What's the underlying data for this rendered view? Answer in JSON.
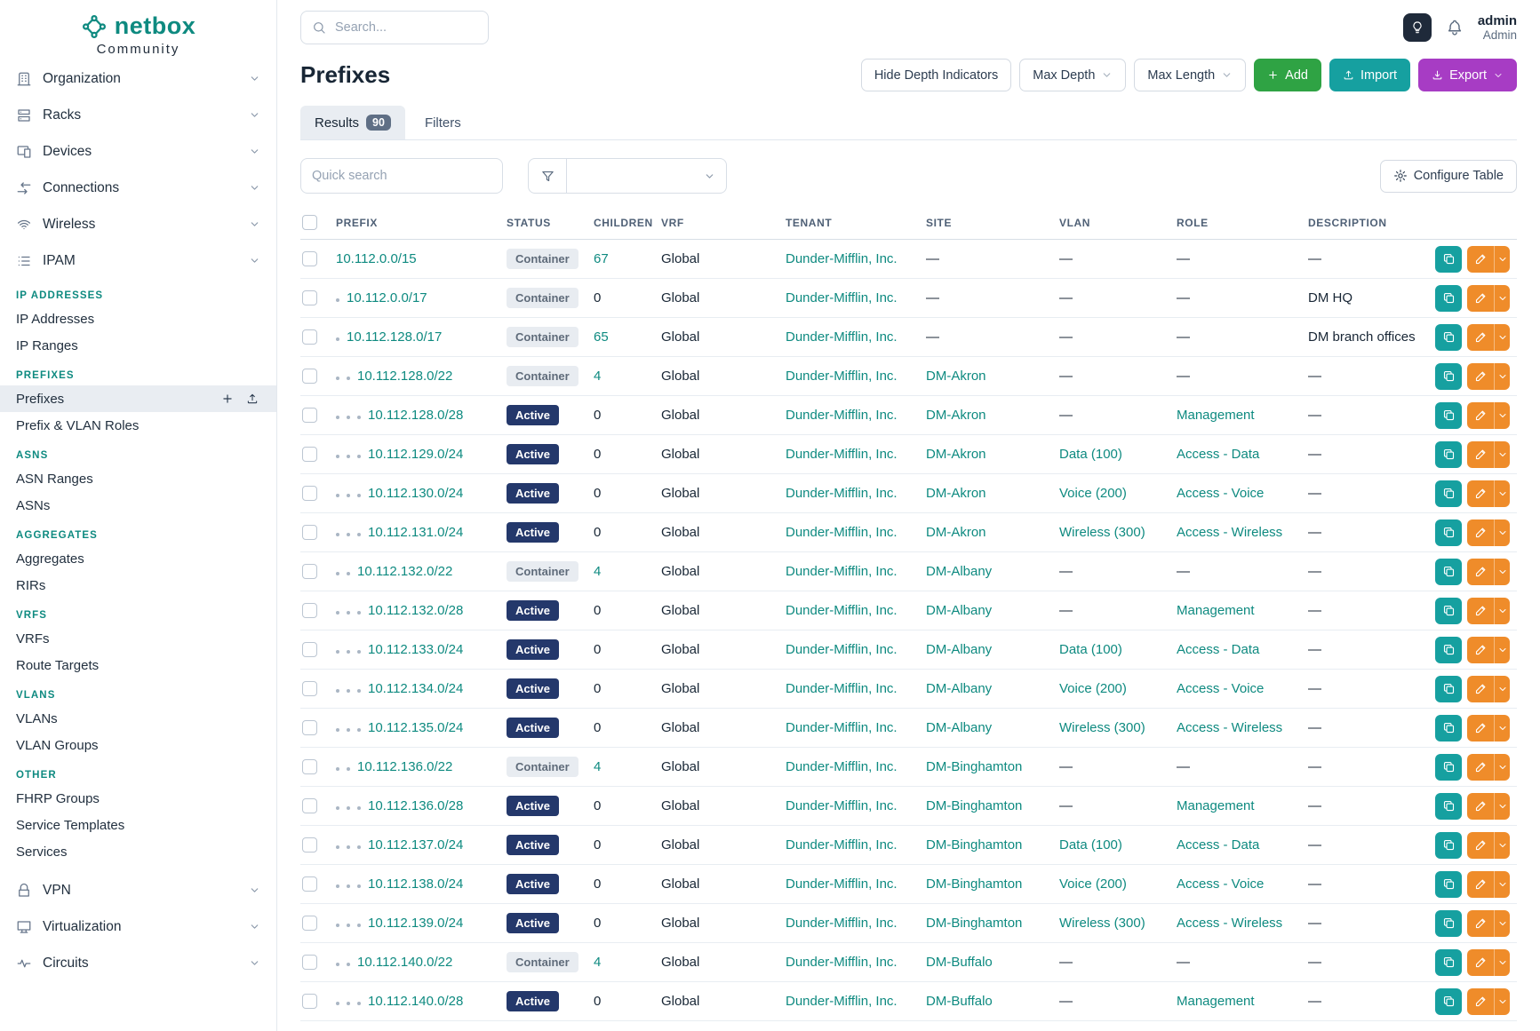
{
  "colors": {
    "teal": "#0e8a80",
    "green": "#2fa344",
    "importteal": "#16a0a0",
    "purple": "#a73cc4",
    "navy": "#24386b",
    "orange": "#ef8c2a",
    "badgegray": "#e8ecf1"
  },
  "brand": {
    "name": "netbox",
    "tagline": "Community"
  },
  "topbar": {
    "search_placeholder": "Search...",
    "user_name": "admin",
    "user_role": "Admin"
  },
  "sidebar": {
    "nav_top": [
      {
        "label": "Organization",
        "icon": "building-icon"
      },
      {
        "label": "Racks",
        "icon": "rack-icon"
      },
      {
        "label": "Devices",
        "icon": "devices-icon"
      },
      {
        "label": "Connections",
        "icon": "connections-icon"
      },
      {
        "label": "Wireless",
        "icon": "wifi-icon"
      },
      {
        "label": "IPAM",
        "icon": "ipam-icon"
      }
    ],
    "active_item": "Prefixes",
    "ipam_sections": [
      {
        "header": "IP ADDRESSES",
        "items": [
          "IP Addresses",
          "IP Ranges"
        ]
      },
      {
        "header": "PREFIXES",
        "items": [
          "Prefixes",
          "Prefix & VLAN Roles"
        ]
      },
      {
        "header": "ASNS",
        "items": [
          "ASN Ranges",
          "ASNs"
        ]
      },
      {
        "header": "AGGREGATES",
        "items": [
          "Aggregates",
          "RIRs"
        ]
      },
      {
        "header": "VRFS",
        "items": [
          "VRFs",
          "Route Targets"
        ]
      },
      {
        "header": "VLANS",
        "items": [
          "VLANs",
          "VLAN Groups"
        ]
      },
      {
        "header": "OTHER",
        "items": [
          "FHRP Groups",
          "Service Templates",
          "Services"
        ]
      }
    ],
    "nav_bottom": [
      {
        "label": "VPN",
        "icon": "vpn-icon"
      },
      {
        "label": "Virtualization",
        "icon": "virtualization-icon"
      },
      {
        "label": "Circuits",
        "icon": "circuits-icon"
      }
    ]
  },
  "page": {
    "title": "Prefixes",
    "buttons": {
      "hide_depth": "Hide Depth Indicators",
      "max_depth": "Max Depth",
      "max_length": "Max Length",
      "add": "Add",
      "import": "Import",
      "export": "Export"
    }
  },
  "tabs": {
    "results": "Results",
    "results_count": "90",
    "filters": "Filters"
  },
  "controls": {
    "quick_search_placeholder": "Quick search",
    "configure_table": "Configure Table"
  },
  "table": {
    "columns": [
      "PREFIX",
      "STATUS",
      "CHILDREN",
      "VRF",
      "TENANT",
      "SITE",
      "VLAN",
      "ROLE",
      "DESCRIPTION"
    ],
    "rows": [
      {
        "depth": 0,
        "prefix": "10.112.0.0/15",
        "status": "Container",
        "children": "67",
        "vrf": "Global",
        "tenant": "Dunder-Mifflin, Inc.",
        "site": "—",
        "vlan": "—",
        "role": "—",
        "description": "—"
      },
      {
        "depth": 1,
        "prefix": "10.112.0.0/17",
        "status": "Container",
        "children": "0",
        "vrf": "Global",
        "tenant": "Dunder-Mifflin, Inc.",
        "site": "—",
        "vlan": "—",
        "role": "—",
        "description": "DM HQ"
      },
      {
        "depth": 1,
        "prefix": "10.112.128.0/17",
        "status": "Container",
        "children": "65",
        "vrf": "Global",
        "tenant": "Dunder-Mifflin, Inc.",
        "site": "—",
        "vlan": "—",
        "role": "—",
        "description": "DM branch offices"
      },
      {
        "depth": 2,
        "prefix": "10.112.128.0/22",
        "status": "Container",
        "children": "4",
        "vrf": "Global",
        "tenant": "Dunder-Mifflin, Inc.",
        "site": "DM-Akron",
        "vlan": "—",
        "role": "—",
        "description": "—"
      },
      {
        "depth": 3,
        "prefix": "10.112.128.0/28",
        "status": "Active",
        "children": "0",
        "vrf": "Global",
        "tenant": "Dunder-Mifflin, Inc.",
        "site": "DM-Akron",
        "vlan": "—",
        "role": "Management",
        "description": "—"
      },
      {
        "depth": 3,
        "prefix": "10.112.129.0/24",
        "status": "Active",
        "children": "0",
        "vrf": "Global",
        "tenant": "Dunder-Mifflin, Inc.",
        "site": "DM-Akron",
        "vlan": "Data (100)",
        "role": "Access - Data",
        "description": "—"
      },
      {
        "depth": 3,
        "prefix": "10.112.130.0/24",
        "status": "Active",
        "children": "0",
        "vrf": "Global",
        "tenant": "Dunder-Mifflin, Inc.",
        "site": "DM-Akron",
        "vlan": "Voice (200)",
        "role": "Access - Voice",
        "description": "—"
      },
      {
        "depth": 3,
        "prefix": "10.112.131.0/24",
        "status": "Active",
        "children": "0",
        "vrf": "Global",
        "tenant": "Dunder-Mifflin, Inc.",
        "site": "DM-Akron",
        "vlan": "Wireless (300)",
        "role": "Access - Wireless",
        "description": "—"
      },
      {
        "depth": 2,
        "prefix": "10.112.132.0/22",
        "status": "Container",
        "children": "4",
        "vrf": "Global",
        "tenant": "Dunder-Mifflin, Inc.",
        "site": "DM-Albany",
        "vlan": "—",
        "role": "—",
        "description": "—"
      },
      {
        "depth": 3,
        "prefix": "10.112.132.0/28",
        "status": "Active",
        "children": "0",
        "vrf": "Global",
        "tenant": "Dunder-Mifflin, Inc.",
        "site": "DM-Albany",
        "vlan": "—",
        "role": "Management",
        "description": "—"
      },
      {
        "depth": 3,
        "prefix": "10.112.133.0/24",
        "status": "Active",
        "children": "0",
        "vrf": "Global",
        "tenant": "Dunder-Mifflin, Inc.",
        "site": "DM-Albany",
        "vlan": "Data (100)",
        "role": "Access - Data",
        "description": "—"
      },
      {
        "depth": 3,
        "prefix": "10.112.134.0/24",
        "status": "Active",
        "children": "0",
        "vrf": "Global",
        "tenant": "Dunder-Mifflin, Inc.",
        "site": "DM-Albany",
        "vlan": "Voice (200)",
        "role": "Access - Voice",
        "description": "—"
      },
      {
        "depth": 3,
        "prefix": "10.112.135.0/24",
        "status": "Active",
        "children": "0",
        "vrf": "Global",
        "tenant": "Dunder-Mifflin, Inc.",
        "site": "DM-Albany",
        "vlan": "Wireless (300)",
        "role": "Access - Wireless",
        "description": "—"
      },
      {
        "depth": 2,
        "prefix": "10.112.136.0/22",
        "status": "Container",
        "children": "4",
        "vrf": "Global",
        "tenant": "Dunder-Mifflin, Inc.",
        "site": "DM-Binghamton",
        "vlan": "—",
        "role": "—",
        "description": "—"
      },
      {
        "depth": 3,
        "prefix": "10.112.136.0/28",
        "status": "Active",
        "children": "0",
        "vrf": "Global",
        "tenant": "Dunder-Mifflin, Inc.",
        "site": "DM-Binghamton",
        "vlan": "—",
        "role": "Management",
        "description": "—"
      },
      {
        "depth": 3,
        "prefix": "10.112.137.0/24",
        "status": "Active",
        "children": "0",
        "vrf": "Global",
        "tenant": "Dunder-Mifflin, Inc.",
        "site": "DM-Binghamton",
        "vlan": "Data (100)",
        "role": "Access - Data",
        "description": "—"
      },
      {
        "depth": 3,
        "prefix": "10.112.138.0/24",
        "status": "Active",
        "children": "0",
        "vrf": "Global",
        "tenant": "Dunder-Mifflin, Inc.",
        "site": "DM-Binghamton",
        "vlan": "Voice (200)",
        "role": "Access - Voice",
        "description": "—"
      },
      {
        "depth": 3,
        "prefix": "10.112.139.0/24",
        "status": "Active",
        "children": "0",
        "vrf": "Global",
        "tenant": "Dunder-Mifflin, Inc.",
        "site": "DM-Binghamton",
        "vlan": "Wireless (300)",
        "role": "Access - Wireless",
        "description": "—"
      },
      {
        "depth": 2,
        "prefix": "10.112.140.0/22",
        "status": "Container",
        "children": "4",
        "vrf": "Global",
        "tenant": "Dunder-Mifflin, Inc.",
        "site": "DM-Buffalo",
        "vlan": "—",
        "role": "—",
        "description": "—"
      },
      {
        "depth": 3,
        "prefix": "10.112.140.0/28",
        "status": "Active",
        "children": "0",
        "vrf": "Global",
        "tenant": "Dunder-Mifflin, Inc.",
        "site": "DM-Buffalo",
        "vlan": "—",
        "role": "Management",
        "description": "—"
      }
    ]
  }
}
